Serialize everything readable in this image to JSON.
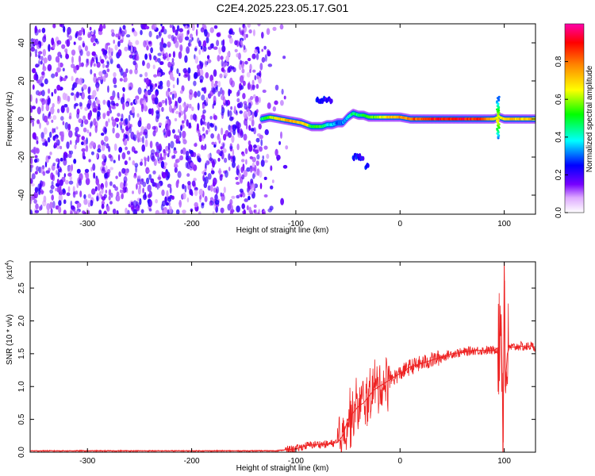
{
  "title": "C2E4.2025.223.05.17.G01",
  "chart_data": [
    {
      "type": "heatmap",
      "title": "C2E4.2025.223.05.17.G01",
      "xlabel": "Height of straight line (km)",
      "ylabel": "Frequency (Hz)",
      "xlim": [
        -355,
        130
      ],
      "ylim": [
        -50,
        50
      ],
      "x_ticks": [
        -300,
        -200,
        -100,
        0,
        100
      ],
      "x_tick_labels": [
        "-300",
        "-200",
        "-100",
        "0",
        "100"
      ],
      "y_ticks": [
        -40,
        -20,
        0,
        20,
        40
      ],
      "y_tick_labels": [
        "-40",
        "-20",
        "0",
        "20",
        "40"
      ],
      "noise_region_x": [
        -355,
        -130
      ],
      "signal_track": {
        "x": [
          -133,
          -125,
          -115,
          -105,
          -95,
          -90,
          -85,
          -80,
          -75,
          -70,
          -65,
          -60,
          -55,
          -50,
          -45,
          -40,
          -35,
          -30,
          -20,
          -10,
          0,
          10,
          20,
          40,
          60,
          80,
          90,
          95,
          100,
          110,
          120,
          130
        ],
        "freq": [
          0,
          1,
          0,
          -1,
          -2,
          -3,
          -4,
          -4,
          -4,
          -3,
          -3,
          -2,
          -2,
          1,
          3,
          2,
          2,
          1,
          1,
          1,
          1,
          0,
          0,
          0,
          0,
          0,
          0,
          1,
          0,
          0,
          0,
          0
        ],
        "amplitude": [
          0.45,
          0.6,
          0.7,
          0.75,
          0.7,
          0.7,
          0.5,
          0.55,
          0.5,
          0.4,
          0.35,
          0.3,
          0.3,
          0.35,
          0.45,
          0.45,
          0.5,
          0.55,
          0.6,
          0.7,
          0.75,
          0.8,
          0.85,
          0.9,
          0.9,
          0.85,
          0.7,
          0.6,
          0.7,
          0.7,
          0.7,
          0.7
        ]
      },
      "side_features": [
        {
          "x": [
            -80,
            -65
          ],
          "freq": 10
        },
        {
          "x": [
            -45,
            -35
          ],
          "freq": -20
        },
        {
          "x": [
            -33,
            -30
          ],
          "freq": -25
        }
      ],
      "colorbar": {
        "label": "Normalized spectral amplitude",
        "range": [
          0,
          1
        ],
        "ticks": [
          0.0,
          0.2,
          0.4,
          0.6,
          0.8
        ],
        "tick_labels": [
          "0.0",
          "0.2",
          "0.4",
          "0.6",
          "0.8"
        ],
        "colormap": [
          "#ffffff",
          "#7700ff",
          "#0000ff",
          "#00ffff",
          "#00ff00",
          "#ffff00",
          "#ff8800",
          "#ff0000",
          "#ff00aa"
        ]
      }
    },
    {
      "type": "line",
      "xlabel": "Height of straight line (km)",
      "ylabel": "SNR (10 * v/v)",
      "y_multiplier": "(x10",
      "y_multiplier_exp": "4",
      "xlim": [
        -355,
        130
      ],
      "ylim": [
        0,
        2.9
      ],
      "x_ticks": [
        -300,
        -200,
        -100,
        0,
        100
      ],
      "x_tick_labels": [
        "-300",
        "-200",
        "-100",
        "0",
        "100"
      ],
      "y_ticks": [
        0.0,
        0.5,
        1.0,
        1.5,
        2.0,
        2.5
      ],
      "y_tick_labels": [
        "0.0",
        "0.5",
        "1.0",
        "1.5",
        "2.0",
        "2.5"
      ],
      "color": "#ee2222",
      "series": [
        {
          "x": [
            -355,
            -300,
            -250,
            -200,
            -150,
            -120,
            -100,
            -90,
            -80,
            -70,
            -60,
            -55,
            -50,
            -45,
            -40,
            -35,
            -30,
            -25,
            -20,
            -15,
            -10,
            -5,
            0,
            10,
            20,
            30,
            40,
            50,
            60,
            70,
            80,
            90,
            95,
            97,
            99,
            100,
            101,
            103,
            105,
            110,
            115,
            120,
            125,
            130
          ],
          "values": [
            0.02,
            0.02,
            0.02,
            0.02,
            0.02,
            0.02,
            0.05,
            0.1,
            0.12,
            0.12,
            0.15,
            0.25,
            0.5,
            0.6,
            0.7,
            0.75,
            0.85,
            0.95,
            1.0,
            1.05,
            1.1,
            1.15,
            1.2,
            1.3,
            1.35,
            1.4,
            1.45,
            1.5,
            1.52,
            1.55,
            1.55,
            1.55,
            1.6,
            2.1,
            0.15,
            2.9,
            1.0,
            1.5,
            1.6,
            1.6,
            1.62,
            1.6,
            1.62,
            1.6
          ]
        }
      ]
    }
  ]
}
